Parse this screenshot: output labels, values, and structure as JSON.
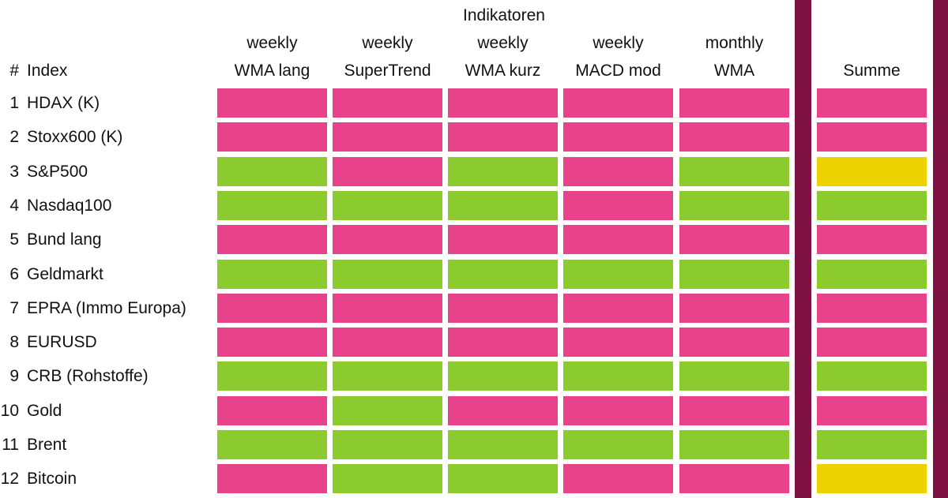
{
  "colors": {
    "red": "#e8428a",
    "green": "#8ccb2e",
    "yellow": "#ecd300",
    "separator": "#7f1142"
  },
  "chart_data": {
    "type": "table",
    "group_header": "Indikatoren",
    "row_header_num": "#",
    "row_header_index": "Index",
    "summary_header": "Summe",
    "columns": [
      {
        "line1": "weekly",
        "line2": "WMA lang"
      },
      {
        "line1": "weekly",
        "line2": "SuperTrend"
      },
      {
        "line1": "weekly",
        "line2": "WMA kurz"
      },
      {
        "line1": "weekly",
        "line2": "MACD mod"
      },
      {
        "line1": "monthly",
        "line2": "WMA"
      }
    ],
    "rows": [
      {
        "num": "1",
        "name": "HDAX (K)",
        "signals": [
          "red",
          "red",
          "red",
          "red",
          "red"
        ],
        "summe": "red"
      },
      {
        "num": "2",
        "name": "Stoxx600 (K)",
        "signals": [
          "red",
          "red",
          "red",
          "red",
          "red"
        ],
        "summe": "red"
      },
      {
        "num": "3",
        "name": "S&P500",
        "signals": [
          "green",
          "red",
          "green",
          "red",
          "green"
        ],
        "summe": "yellow"
      },
      {
        "num": "4",
        "name": "Nasdaq100",
        "signals": [
          "green",
          "green",
          "green",
          "red",
          "green"
        ],
        "summe": "green"
      },
      {
        "num": "5",
        "name": "Bund lang",
        "signals": [
          "red",
          "red",
          "red",
          "red",
          "red"
        ],
        "summe": "red"
      },
      {
        "num": "6",
        "name": "Geldmarkt",
        "signals": [
          "green",
          "green",
          "green",
          "green",
          "green"
        ],
        "summe": "green"
      },
      {
        "num": "7",
        "name": "EPRA (Immo Europa)",
        "signals": [
          "red",
          "red",
          "red",
          "red",
          "red"
        ],
        "summe": "red"
      },
      {
        "num": "8",
        "name": "EURUSD",
        "signals": [
          "red",
          "red",
          "red",
          "red",
          "red"
        ],
        "summe": "red"
      },
      {
        "num": "9",
        "name": "CRB (Rohstoffe)",
        "signals": [
          "green",
          "green",
          "green",
          "green",
          "green"
        ],
        "summe": "green"
      },
      {
        "num": "10",
        "name": "Gold",
        "signals": [
          "red",
          "green",
          "red",
          "red",
          "red"
        ],
        "summe": "red"
      },
      {
        "num": "11",
        "name": "Brent",
        "signals": [
          "green",
          "green",
          "green",
          "green",
          "green"
        ],
        "summe": "green"
      },
      {
        "num": "12",
        "name": "Bitcoin",
        "signals": [
          "red",
          "green",
          "green",
          "red",
          "red"
        ],
        "summe": "yellow"
      }
    ]
  }
}
